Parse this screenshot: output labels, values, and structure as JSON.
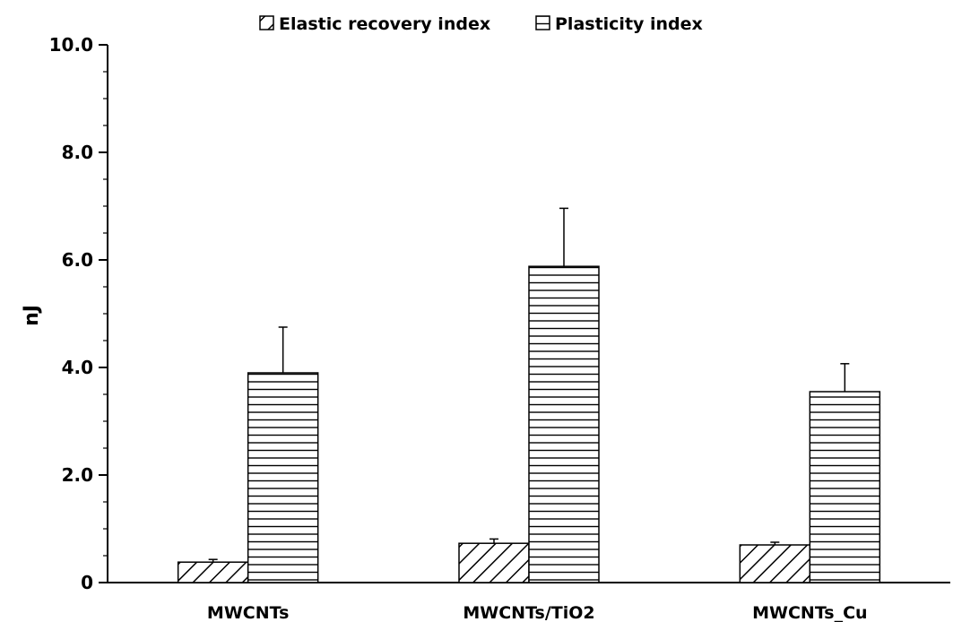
{
  "chart_data": {
    "type": "bar",
    "title": "",
    "xlabel": "",
    "ylabel": "nJ",
    "ylim": [
      0,
      10
    ],
    "yticks": [
      {
        "value": 0,
        "label": "0"
      },
      {
        "value": 2,
        "label": "2.0"
      },
      {
        "value": 4,
        "label": "4.0"
      },
      {
        "value": 6,
        "label": "6.0"
      },
      {
        "value": 8,
        "label": "8.0"
      },
      {
        "value": 10,
        "label": "10.0"
      }
    ],
    "minor_tick_step": 0.5,
    "grid": false,
    "legend_position": "top-center",
    "categories": [
      "MWCNTs",
      "MWCNTs/TiO2",
      "MWCNTs_Cu"
    ],
    "series": [
      {
        "name": "Elastic recovery index",
        "pattern": "diagonal-hatch",
        "values": [
          0.38,
          0.73,
          0.7
        ],
        "errors": [
          0.05,
          0.08,
          0.05
        ]
      },
      {
        "name": "Plasticity index",
        "pattern": "horizontal-lines",
        "values": [
          3.9,
          5.88,
          3.55
        ],
        "errors": [
          0.85,
          1.08,
          0.52
        ]
      }
    ]
  }
}
